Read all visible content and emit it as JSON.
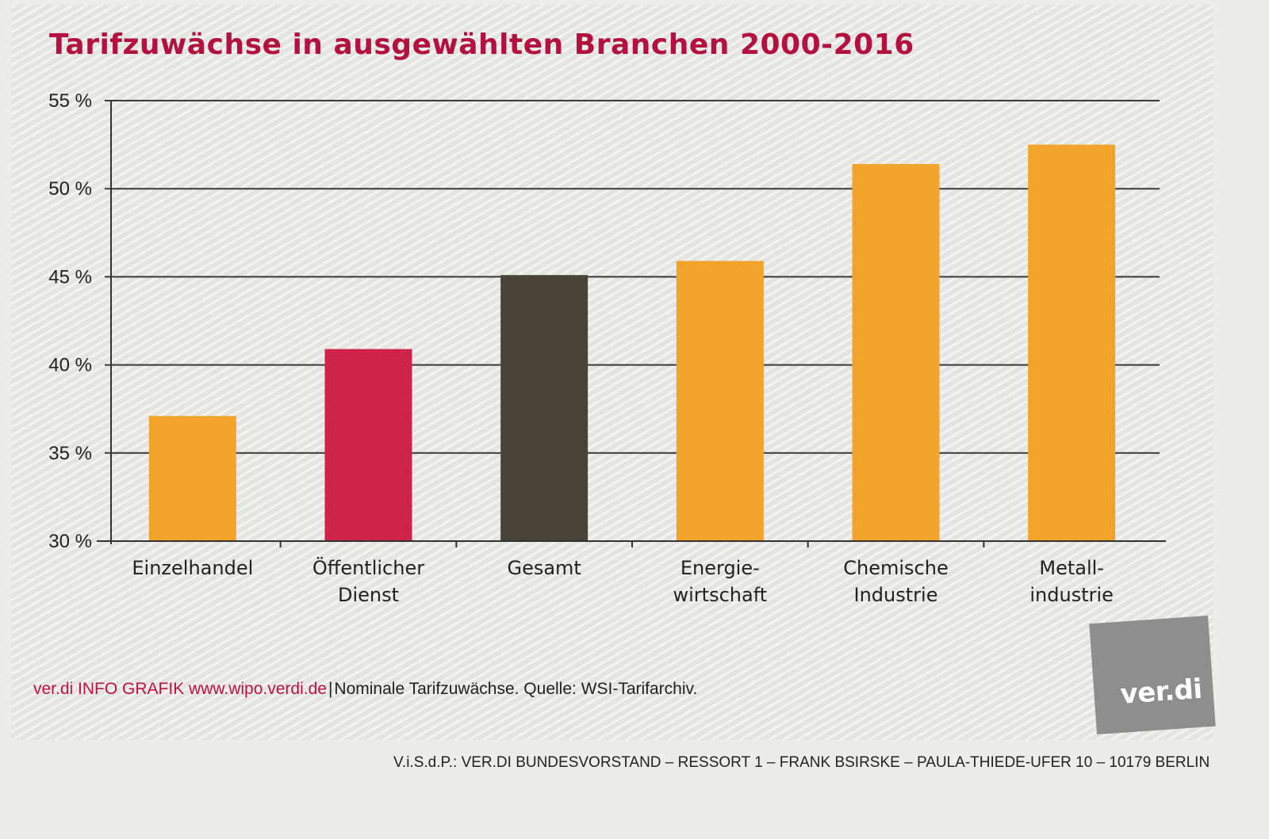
{
  "chart_data": {
    "type": "bar",
    "title": "Tarifzuwächse in ausgewählten Branchen 2000-2016",
    "categories": [
      "Einzelhandel",
      "Öffentlicher Dienst",
      "Gesamt",
      "Energie-wirtschaft",
      "Chemische Industrie",
      "Metall-industrie"
    ],
    "category_lines": [
      [
        "Einzelhandel"
      ],
      [
        "Öffentlicher",
        "Dienst"
      ],
      [
        "Gesamt"
      ],
      [
        "Energie-",
        "wirtschaft"
      ],
      [
        "Chemische",
        "Industrie"
      ],
      [
        "Metall-",
        "industrie"
      ]
    ],
    "values": [
      37.1,
      40.9,
      45.1,
      45.9,
      51.4,
      52.5
    ],
    "bar_colors": [
      "#f2a329",
      "#cf2449",
      "#4a4438",
      "#f2a329",
      "#f2a329",
      "#f2a329"
    ],
    "ylim": [
      30,
      55
    ],
    "yticks": [
      30,
      35,
      40,
      45,
      50,
      55
    ],
    "ytick_labels": [
      "30 %",
      "35 %",
      "40 %",
      "45 %",
      "50 %",
      "55 %"
    ],
    "xlabel": "",
    "ylabel": "",
    "grid": true,
    "legend": "none"
  },
  "footer": {
    "brand": "ver.di INFO GRAFIK www.wipo.verdi.de",
    "separator": "|",
    "note": "Nominale Tarifzuwächse. Quelle: WSI-Tarifarchiv."
  },
  "logo": {
    "text": "ver.di",
    "color": "#8e8e8e"
  },
  "imprint": "V.i.S.d.P.: VER.DI BUNDESVORSTAND – RESSORT 1 – FRANK BSIRSKE – PAULA-THIEDE-UFER 10 – 10179 BERLIN",
  "colors": {
    "title": "#b3113e",
    "axis": "#333333",
    "background": "#e4e4e3"
  }
}
